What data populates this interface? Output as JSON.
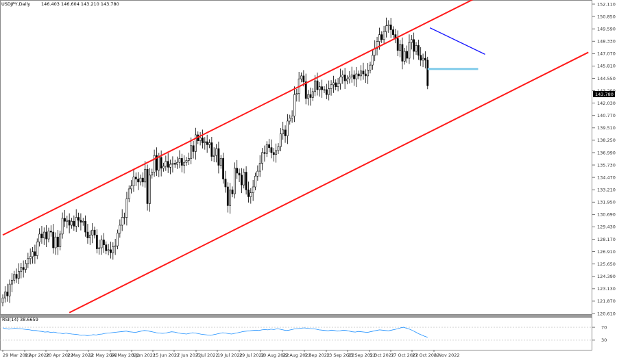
{
  "header": {
    "symbol": "USDJPY,Daily",
    "ohlc": "146.403 146.604 143.210 143.780"
  },
  "rsi_panel": {
    "label": "RSI(14) 38.6659"
  },
  "price_axis": {
    "current_price_label": "143.780"
  },
  "colors": {
    "channel": "#ff1a1a",
    "downtrend": "#1a1aff",
    "support": "#87ceeb",
    "rsi_line": "#1e90ff",
    "candle": "#000000",
    "grid": "#999999",
    "background": "#ffffff"
  },
  "chart_data": [
    {
      "type": "candlestick",
      "title": "USDJPY,Daily",
      "symbol": "USDJPY",
      "timeframe": "Daily",
      "last_ohlc": {
        "open": 146.403,
        "high": 146.604,
        "low": 143.21,
        "close": 143.78
      },
      "current_price": 143.78,
      "y_ticks": [
        152.11,
        150.85,
        149.59,
        148.33,
        147.07,
        145.81,
        144.55,
        143.29,
        142.03,
        140.77,
        139.51,
        138.25,
        136.99,
        135.73,
        134.47,
        133.21,
        131.95,
        130.69,
        129.43,
        128.17,
        126.91,
        125.65,
        124.39,
        123.13,
        121.87,
        120.61
      ],
      "ylim": [
        120.61,
        152.11
      ],
      "x_tick_labels": [
        "29 Mar 2022",
        "8 Apr 2022",
        "20 Apr 2022",
        "2 May 2022",
        "12 May 2022",
        "24 May 2022",
        "3 Jun 2022",
        "15 Jun 2022",
        "27 Jun 2022",
        "7 Jul 2022",
        "19 Jul 2022",
        "29 Jul 2022",
        "10 Aug 2022",
        "22 Aug 2022",
        "1 Sep 2022",
        "13 Sep 2022",
        "23 Sep 2022",
        "5 Oct 2022",
        "17 Oct 2022",
        "27 Oct 2022",
        "8 Nov 2022"
      ],
      "closes": [
        122.2,
        122.8,
        122.4,
        123.6,
        124.0,
        124.6,
        124.2,
        124.9,
        125.3,
        125.1,
        125.7,
        126.2,
        126.4,
        126.9,
        126.5,
        127.9,
        128.7,
        128.3,
        128.9,
        128.2,
        129.0,
        128.9,
        127.3,
        128.4,
        127.4,
        128.7,
        130.3,
        130.0,
        130.1,
        129.6,
        130.0,
        129.5,
        130.4,
        130.1,
        129.9,
        130.0,
        128.9,
        128.3,
        128.6,
        129.1,
        128.6,
        127.2,
        127.3,
        128.1,
        127.6,
        127.0,
        127.1,
        126.8,
        127.4,
        127.5,
        128.8,
        129.6,
        130.4,
        130.4,
        132.3,
        133.3,
        133.6,
        134.5,
        134.3,
        134.0,
        134.4,
        134.0,
        135.3,
        131.8,
        134.7,
        135.0,
        136.7,
        135.2,
        136.5,
        135.4,
        135.6,
        136.1,
        135.5,
        135.8,
        135.9,
        135.8,
        136.0,
        136.4,
        135.7,
        136.0,
        136.2,
        136.4,
        137.7,
        137.1,
        138.8,
        138.2,
        138.5,
        138.0,
        138.1,
        137.8,
        138.0,
        136.6,
        136.7,
        137.4,
        135.7,
        136.4,
        134.3,
        133.5,
        131.6,
        133.2,
        132.8,
        135.4,
        134.9,
        134.7,
        133.7,
        135.0,
        133.2,
        132.5,
        132.9,
        133.5,
        134.6,
        135.1,
        135.9,
        137.0,
        136.9,
        137.8,
        137.5,
        137.0,
        136.8,
        137.2,
        137.6,
        138.9,
        139.3,
        138.7,
        140.2,
        140.5,
        140.7,
        142.9,
        143.0,
        144.5,
        144.8,
        144.2,
        142.5,
        142.9,
        142.6,
        143.2,
        144.3,
        143.4,
        143.7,
        143.4,
        143.4,
        142.9,
        143.5,
        143.9,
        144.1,
        143.7,
        144.0,
        144.7,
        144.9,
        144.3,
        144.5,
        144.7,
        144.9,
        144.5,
        145.0,
        144.8,
        145.3,
        145.0,
        144.8,
        145.4,
        145.9,
        146.9,
        147.6,
        148.3,
        149.0,
        148.5,
        149.3,
        149.9,
        150.0,
        149.5,
        149.0,
        148.6,
        147.4,
        148.0,
        146.3,
        147.3,
        146.6,
        148.2,
        148.5,
        147.3,
        147.9,
        146.9,
        146.4,
        146.6,
        146.4,
        143.8
      ],
      "drawings": [
        {
          "name": "upper-channel-line",
          "color": "red",
          "from": {
            "index": 0,
            "price": 128.6
          },
          "to": {
            "index": 210,
            "price": 153.2
          }
        },
        {
          "name": "lower-channel-line",
          "color": "red",
          "from": {
            "index": 29,
            "price": 120.7
          },
          "to": {
            "index": 255,
            "price": 147.2
          }
        },
        {
          "name": "downtrend-line",
          "color": "blue",
          "from": {
            "index": 186,
            "price": 149.7
          },
          "to": {
            "index": 210,
            "price": 147.0
          }
        },
        {
          "name": "support-zone",
          "color": "light-blue",
          "from": {
            "index": 185,
            "price": 145.62
          },
          "to": {
            "index": 207,
            "price": 145.4
          }
        }
      ]
    },
    {
      "type": "line",
      "title": "RSI(14) 38.6659",
      "series": [
        {
          "name": "RSI(14)",
          "values": [
            68,
            66,
            64,
            65,
            67,
            66,
            65,
            64,
            63,
            62,
            60,
            60,
            58,
            57,
            55,
            56,
            54,
            55,
            53,
            52,
            50,
            52,
            50,
            49,
            48,
            47,
            45,
            46,
            44,
            45,
            47,
            46,
            48,
            49,
            51,
            52,
            53,
            54,
            55,
            56,
            57,
            58,
            56,
            55,
            54,
            56,
            58,
            60,
            59,
            57,
            55,
            53,
            52,
            51,
            52,
            54,
            56,
            55,
            53,
            51,
            50,
            49,
            51,
            53,
            52,
            50,
            48,
            47,
            46,
            45,
            47,
            49,
            51,
            53,
            52,
            50,
            49,
            51,
            53,
            55,
            57,
            58,
            59,
            60,
            61,
            60,
            62,
            63,
            62,
            64,
            63,
            65,
            64,
            62,
            60,
            61,
            63,
            65,
            66,
            67,
            68,
            67,
            66,
            65,
            64,
            62,
            61,
            60,
            59,
            61,
            60,
            58,
            59,
            61,
            60,
            58,
            56,
            55,
            57,
            56,
            55,
            54,
            56,
            58,
            60,
            62,
            61,
            60,
            59,
            61,
            63,
            65,
            68,
            70,
            67,
            64,
            60,
            55,
            50,
            46,
            42,
            39
          ]
        }
      ],
      "y_ticks": [
        70,
        30
      ],
      "ylim": [
        0,
        100
      ]
    }
  ]
}
